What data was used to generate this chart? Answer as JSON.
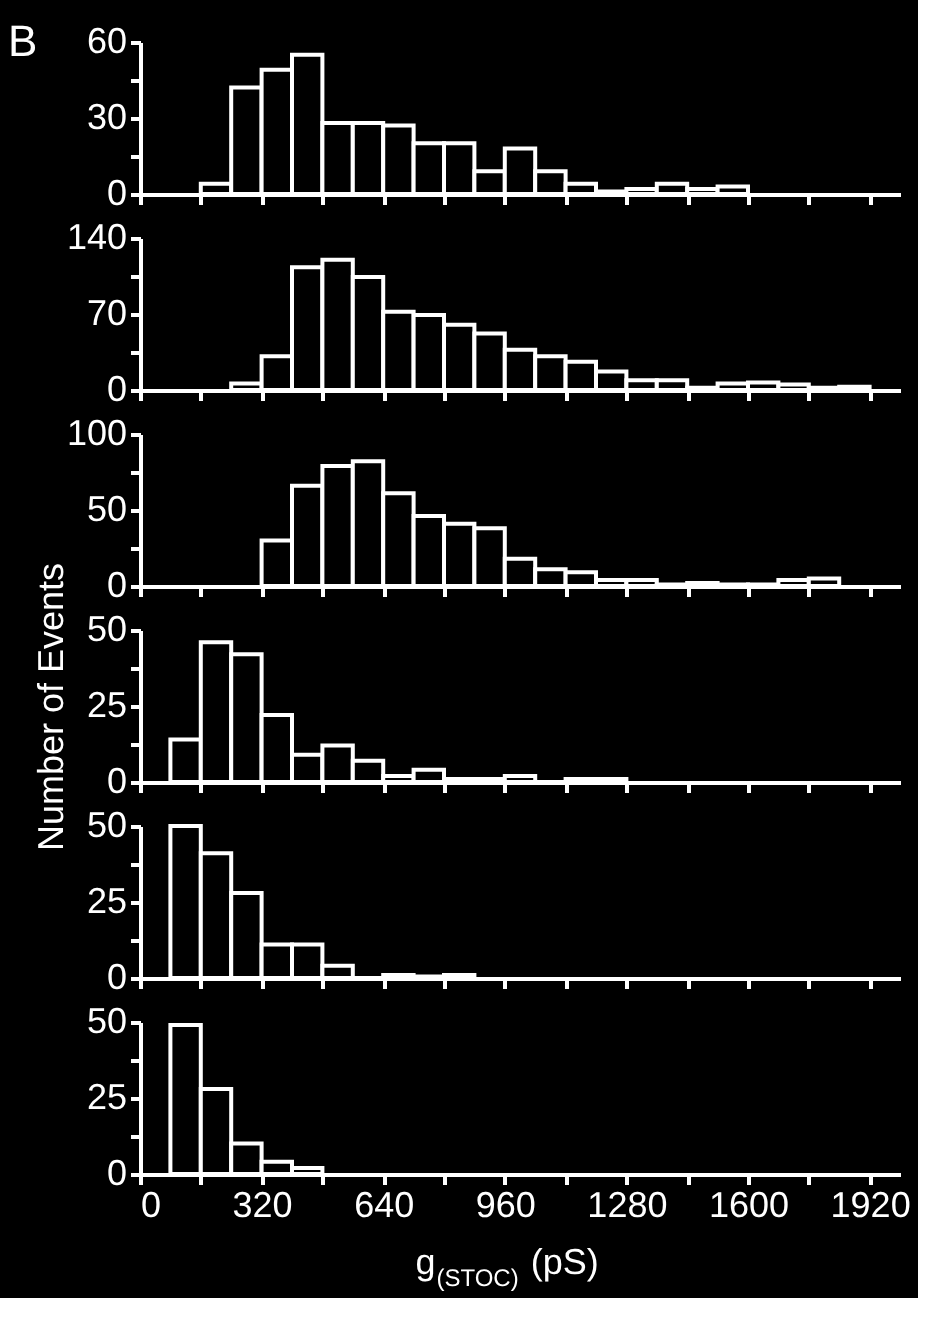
{
  "chart_data": [
    {
      "type": "histogram",
      "title": "B",
      "color": "#ffffff",
      "bins": [
        160,
        240,
        320,
        400,
        480,
        560,
        640,
        720,
        800,
        880,
        960,
        1040,
        1120,
        1200,
        1280,
        1360,
        1440,
        1520,
        1600
      ],
      "values": [
        4,
        42,
        49,
        55,
        28,
        28,
        27,
        20,
        20,
        9,
        18,
        9,
        4,
        1,
        2,
        4,
        2,
        3
      ],
      "xlim": [
        0,
        2000
      ],
      "xticks": [
        0,
        {
          "value": 160,
          "label": null
        },
        320,
        {
          "value": 480,
          "label": null
        },
        640,
        {
          "value": 800,
          "label": null
        },
        960,
        {
          "value": 1120,
          "label": null
        },
        1280,
        {
          "value": 1440,
          "label": null
        },
        1600,
        {
          "value": 1760,
          "label": null
        },
        1920
      ],
      "ylim": [
        0,
        60
      ],
      "yticks": [
        0,
        {
          "value": 15,
          "label": null
        },
        30,
        {
          "value": 45,
          "label": null
        },
        60
      ],
      "tick_labels": "y"
    },
    {
      "type": "histogram",
      "color": "#ffffff",
      "bins": [
        240,
        320,
        400,
        480,
        560,
        640,
        720,
        800,
        880,
        960,
        1040,
        1120,
        1200,
        1280,
        1360,
        1440,
        1520,
        1600,
        1680,
        1760,
        1840,
        1920
      ],
      "values": [
        6,
        31,
        113,
        120,
        104,
        72,
        69,
        60,
        52,
        37,
        31,
        26,
        17,
        9,
        9,
        2,
        6,
        7,
        5,
        2,
        3
      ],
      "xlim": [
        0,
        2000
      ],
      "xticks": [
        0,
        {
          "value": 160,
          "label": null
        },
        320,
        {
          "value": 480,
          "label": null
        },
        640,
        {
          "value": 800,
          "label": null
        },
        960,
        {
          "value": 1120,
          "label": null
        },
        1280,
        {
          "value": 1440,
          "label": null
        },
        1600,
        {
          "value": 1760,
          "label": null
        },
        1920
      ],
      "ylim": [
        0,
        140
      ],
      "yticks": [
        0,
        {
          "value": 35,
          "label": null
        },
        70,
        {
          "value": 105,
          "label": null
        },
        140
      ],
      "tick_labels": "y"
    },
    {
      "type": "histogram",
      "color": "#ffffff",
      "bins": [
        320,
        400,
        480,
        560,
        640,
        720,
        800,
        880,
        960,
        1040,
        1120,
        1200,
        1280,
        1360,
        1440,
        1520,
        1600,
        1680,
        1760,
        1840
      ],
      "values": [
        30,
        66,
        79,
        82,
        61,
        46,
        41,
        38,
        18,
        11,
        9,
        4,
        4,
        1,
        2,
        1,
        1,
        4,
        5
      ],
      "xlim": [
        0,
        2000
      ],
      "xticks": [
        0,
        {
          "value": 160,
          "label": null
        },
        320,
        {
          "value": 480,
          "label": null
        },
        640,
        {
          "value": 800,
          "label": null
        },
        960,
        {
          "value": 1120,
          "label": null
        },
        1280,
        {
          "value": 1440,
          "label": null
        },
        1600,
        {
          "value": 1760,
          "label": null
        },
        1920
      ],
      "ylim": [
        0,
        100
      ],
      "yticks": [
        0,
        {
          "value": 25,
          "label": null
        },
        50,
        {
          "value": 75,
          "label": null
        },
        100
      ],
      "tick_labels": "y"
    },
    {
      "type": "histogram",
      "ylabel": "Number of Events",
      "color": "#ffffff",
      "bins": [
        80,
        160,
        240,
        320,
        400,
        480,
        560,
        640,
        720,
        800,
        880,
        960,
        1040,
        1120,
        1200,
        1280
      ],
      "values": [
        14,
        46,
        42,
        22,
        9,
        12,
        7,
        2,
        4,
        1,
        1,
        2,
        0,
        1,
        1
      ],
      "xlim": [
        0,
        2000
      ],
      "xticks": [
        0,
        {
          "value": 160,
          "label": null
        },
        320,
        {
          "value": 480,
          "label": null
        },
        640,
        {
          "value": 800,
          "label": null
        },
        960,
        {
          "value": 1120,
          "label": null
        },
        1280,
        {
          "value": 1440,
          "label": null
        },
        1600,
        {
          "value": 1760,
          "label": null
        },
        1920
      ],
      "ylim": [
        0,
        50
      ],
      "yticks": [
        0,
        {
          "value": 12.5,
          "label": null
        },
        25,
        {
          "value": 37.5,
          "label": null
        },
        50
      ],
      "tick_labels": "y"
    },
    {
      "type": "histogram",
      "color": "#ffffff",
      "bins": [
        80,
        160,
        240,
        320,
        400,
        480,
        560,
        640,
        720,
        800,
        880
      ],
      "values": [
        50,
        41,
        28,
        11,
        11,
        4,
        0,
        1,
        0.5,
        1
      ],
      "xlim": [
        0,
        2000
      ],
      "xticks": [
        0,
        {
          "value": 160,
          "label": null
        },
        320,
        {
          "value": 480,
          "label": null
        },
        640,
        {
          "value": 800,
          "label": null
        },
        960,
        {
          "value": 1120,
          "label": null
        },
        1280,
        {
          "value": 1440,
          "label": null
        },
        1600,
        {
          "value": 1760,
          "label": null
        },
        1920
      ],
      "ylim": [
        0,
        50
      ],
      "yticks": [
        0,
        {
          "value": 12.5,
          "label": null
        },
        25,
        {
          "value": 37.5,
          "label": null
        },
        50
      ],
      "tick_labels": "y"
    },
    {
      "type": "histogram",
      "xlabel": "g$_{(STOC)}$ (pS)",
      "color": "#ffffff",
      "bins": [
        80,
        160,
        240,
        320,
        400,
        480
      ],
      "values": [
        49,
        28,
        10,
        4,
        2
      ],
      "xlim": [
        0,
        2000
      ],
      "xticks": [
        0,
        {
          "value": 160,
          "label": null
        },
        320,
        {
          "value": 480,
          "label": null
        },
        640,
        {
          "value": 800,
          "label": null
        },
        960,
        {
          "value": 1120,
          "label": null
        },
        1280,
        {
          "value": 1440,
          "label": null
        },
        1600,
        {
          "value": 1760,
          "label": null
        },
        1920
      ],
      "ylim": [
        0,
        50
      ],
      "yticks": [
        0,
        {
          "value": 12.5,
          "label": null
        },
        25,
        {
          "value": 37.5,
          "label": null
        },
        50
      ]
    }
  ]
}
